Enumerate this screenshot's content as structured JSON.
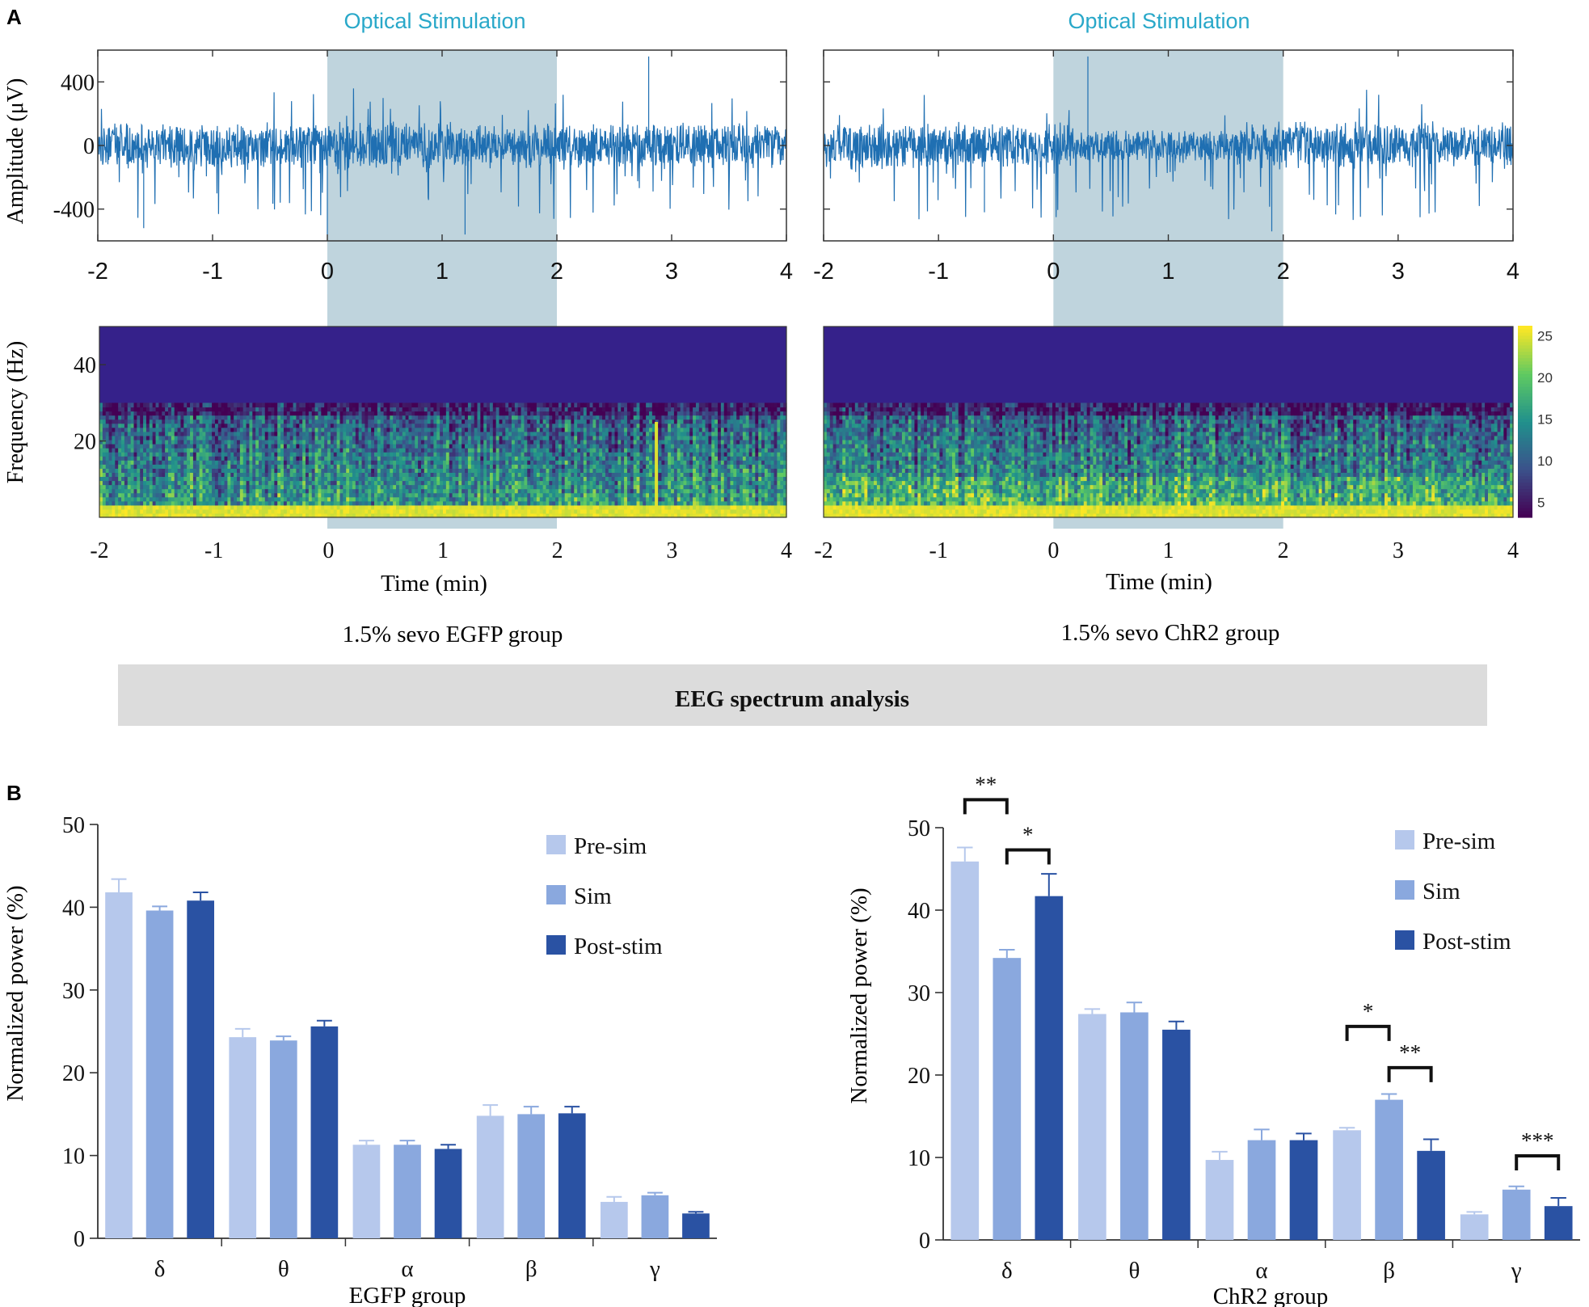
{
  "panel_labels": {
    "a": "A",
    "b": "B"
  },
  "section_bar": {
    "label": "EEG spectrum analysis",
    "color": "#dcdcdc"
  },
  "colors": {
    "eeg_trace": "#1f6fb2",
    "stim_shade": "#a9c6d2",
    "pre": "#b6c8ec",
    "sim": "#8aa8de",
    "post": "#2a52a3",
    "stim_title": "#29a8c9"
  },
  "chart_data": [
    {
      "id": "eeg_egfp",
      "type": "line",
      "title": "Optical Stimulation",
      "ylabel": "Amplitude (μV)",
      "xlabel": "",
      "xlim": [
        -2,
        4
      ],
      "ylim": [
        -600,
        600
      ],
      "x_ticks": [
        "-2",
        "-1",
        "0",
        "1",
        "2",
        "3",
        "4"
      ],
      "y_ticks": [
        "400",
        "0",
        "-400"
      ],
      "y_tick_values": [
        400,
        0,
        -400
      ],
      "stim_window": [
        0,
        2
      ],
      "grid": false
    },
    {
      "id": "eeg_chr2",
      "type": "line",
      "title": "Optical Stimulation",
      "ylabel": "",
      "xlabel": "",
      "xlim": [
        -2,
        4
      ],
      "ylim": [
        -600,
        600
      ],
      "x_ticks": [
        "-2",
        "-1",
        "0",
        "1",
        "2",
        "3",
        "4"
      ],
      "stim_window": [
        0,
        2
      ],
      "grid": false
    },
    {
      "id": "spec_egfp",
      "type": "heatmap",
      "ylabel": "Frequency (Hz)",
      "xlabel": "Time (min)",
      "caption": "1.5% sevo EGFP group",
      "xlim": [
        -2,
        4
      ],
      "ylim": [
        0,
        50
      ],
      "x_ticks": [
        "-2",
        "-1",
        "0",
        "1",
        "2",
        "3",
        "4"
      ],
      "y_ticks": [
        "40",
        "20"
      ],
      "y_tick_values": [
        40,
        20
      ]
    },
    {
      "id": "spec_chr2",
      "type": "heatmap",
      "ylabel": "",
      "xlabel": "Time (min)",
      "caption": "1.5% sevo ChR2 group",
      "xlim": [
        -2,
        4
      ],
      "ylim": [
        0,
        50
      ],
      "x_ticks": [
        "-2",
        "-1",
        "0",
        "1",
        "2",
        "3",
        "4"
      ],
      "colorbar_ticks": [
        "25",
        "20",
        "15",
        "10",
        "5"
      ],
      "colorbar_values": [
        25,
        20,
        15,
        10,
        5
      ],
      "colorbar_range": [
        3,
        26
      ]
    },
    {
      "id": "bar_egfp",
      "type": "bar",
      "xlabel": "EGFP group",
      "ylabel": "Normalized power (%)",
      "ylim": [
        0,
        50
      ],
      "y_ticks": [
        "0",
        "10",
        "20",
        "30",
        "40",
        "50"
      ],
      "y_tick_values": [
        0,
        10,
        20,
        30,
        40,
        50
      ],
      "categories": [
        "δ",
        "θ",
        "α",
        "β",
        "γ"
      ],
      "legend_position": "top-right",
      "series": [
        {
          "name": "Pre-sim",
          "values": [
            41.8,
            24.3,
            11.3,
            14.8,
            4.4
          ],
          "errors": [
            1.6,
            1.0,
            0.5,
            1.3,
            0.6
          ]
        },
        {
          "name": "Sim",
          "values": [
            39.6,
            23.9,
            11.3,
            15.0,
            5.2
          ],
          "errors": [
            0.5,
            0.5,
            0.5,
            0.9,
            0.3
          ]
        },
        {
          "name": "Post-stim",
          "values": [
            40.8,
            25.6,
            10.8,
            15.1,
            3.0
          ],
          "errors": [
            1.0,
            0.7,
            0.5,
            0.8,
            0.2
          ]
        }
      ],
      "significance": []
    },
    {
      "id": "bar_chr2",
      "type": "bar",
      "xlabel": "ChR2 group",
      "ylabel": "Normalized power (%)",
      "ylim": [
        0,
        50
      ],
      "y_ticks": [
        "0",
        "10",
        "20",
        "30",
        "40",
        "50"
      ],
      "y_tick_values": [
        0,
        10,
        20,
        30,
        40,
        50
      ],
      "categories": [
        "δ",
        "θ",
        "α",
        "β",
        "γ"
      ],
      "legend_position": "top-right",
      "series": [
        {
          "name": "Pre-sim",
          "values": [
            45.9,
            27.4,
            9.7,
            13.3,
            3.1
          ],
          "errors": [
            1.7,
            0.6,
            1.0,
            0.3,
            0.3
          ]
        },
        {
          "name": "Sim",
          "values": [
            34.2,
            27.6,
            12.1,
            17.0,
            6.1
          ],
          "errors": [
            1.0,
            1.2,
            1.3,
            0.7,
            0.4
          ]
        },
        {
          "name": "Post-stim",
          "values": [
            41.7,
            25.5,
            12.1,
            10.8,
            4.1
          ],
          "errors": [
            2.7,
            1.0,
            0.8,
            1.4,
            1.0
          ]
        }
      ],
      "significance": [
        {
          "category": 0,
          "from": 0,
          "to": 1,
          "label": "**",
          "value": 53.4
        },
        {
          "category": 0,
          "from": 1,
          "to": 2,
          "label": "*",
          "value": 47.3
        },
        {
          "category": 3,
          "from": 0,
          "to": 1,
          "label": "*",
          "value": 25.9
        },
        {
          "category": 3,
          "from": 1,
          "to": 2,
          "label": "**",
          "value": 20.9
        },
        {
          "category": 4,
          "from": 1,
          "to": 2,
          "label": "***",
          "value": 10.2
        }
      ]
    }
  ]
}
